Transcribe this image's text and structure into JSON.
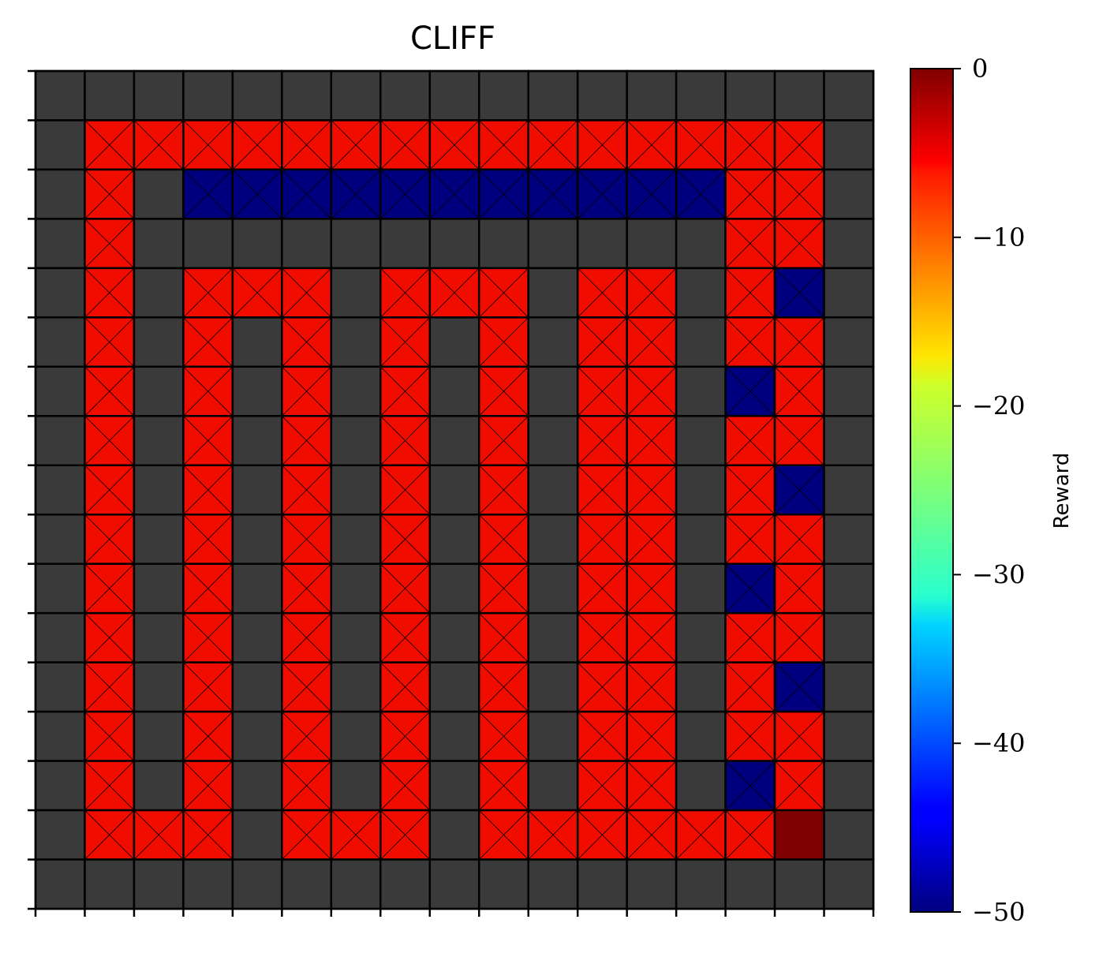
{
  "chart_data": {
    "type": "heatmap",
    "title": "CLIFF",
    "rows": 17,
    "cols": 17,
    "legend": {
      "position": "right",
      "colormap": "jet",
      "label": "Reward",
      "range": [
        -50,
        0
      ],
      "ticks": [
        {
          "value": 0,
          "label": "0"
        },
        {
          "value": -10,
          "label": "−10"
        },
        {
          "value": -20,
          "label": "−20"
        },
        {
          "value": -30,
          "label": "−30"
        },
        {
          "value": -40,
          "label": "−40"
        },
        {
          "value": -50,
          "label": "−50"
        }
      ]
    },
    "legend_codes": {
      ".": "wall / no cell (grey #3a3a3a)",
      "r": "reward -5, crossed",
      "b": "reward -50, crossed",
      "g": "reward 0, goal"
    },
    "grid": [
      ".................",
      ".rrrrrrrrrrrrrrr.",
      ".r.bbbbbbbbbbbrr.",
      ".r............rr.",
      ".r.rrr.rrr.rr.rb.",
      ".r.r.r.r.r.rr.rr.",
      ".r.r.r.r.r.rr.br.",
      ".r.r.r.r.r.rr.rr.",
      ".r.r.r.r.r.rr.rb.",
      ".r.r.r.r.r.rr.rr.",
      ".r.r.r.r.r.rr.br.",
      ".r.r.r.r.r.rr.rr.",
      ".r.r.r.r.r.rr.rb.",
      ".r.r.r.r.r.rr.rr.",
      ".r.r.r.r.r.rr.br.",
      ".rrr.rrr.rrrrrrg.",
      "................."
    ],
    "values": {
      "r": -5,
      "b": -50,
      "g": 0
    },
    "colors": {
      "wall": "#3a3a3a",
      "r": "#f00d00",
      "b": "#00007f",
      "g": "#7f0000"
    }
  }
}
